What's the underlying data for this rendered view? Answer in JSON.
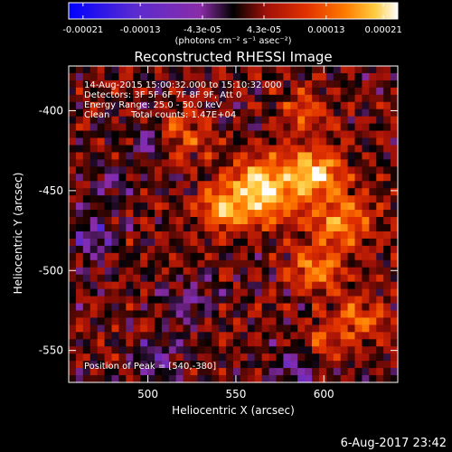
{
  "chart_data": {
    "type": "heatmap",
    "title": "Reconstructed RHESSI Image",
    "xlabel": "Heliocentric X (arcsec)",
    "ylabel": "Heliocentric Y (arcsec)",
    "xlim": [
      455,
      642
    ],
    "ylim": [
      -570,
      -372
    ],
    "x_ticks": [
      500,
      550,
      600
    ],
    "y_ticks": [
      -400,
      -450,
      -500,
      -550
    ],
    "colorbar": {
      "range": [
        -0.00023,
        0.00023
      ],
      "tick_values": [
        -0.00021,
        -0.00013,
        -4.3e-05,
        4.3e-05,
        0.00013,
        0.00021
      ],
      "tick_labels": [
        "-0.00021",
        "-0.00013",
        "-4.3e-05",
        "4.3e-05",
        "0.00013",
        "0.00021"
      ],
      "unit_label": "(photons cm⁻² s⁻¹ asec⁻²)",
      "colormap": [
        "#0000ff",
        "#5a2bd0",
        "#8a2ca8",
        "#000000",
        "#a01008",
        "#e03000",
        "#ff7a00",
        "#ffcc40",
        "#ffffff"
      ]
    },
    "annotations": [
      "14-Aug-2015 15:00:32.000 to 15:10:32.000",
      "Detectors: 3F 5F 6F 7F 8F 9F, Att 0",
      "Energy Range: 25.0 - 50.0 keV",
      "Clean",
      "Total counts: 1.47E+04"
    ],
    "peak_label": "Position of Peak = [540,-380]",
    "peak_position": [
      540,
      -380
    ],
    "sources": [
      {
        "x": 565,
        "y": -450,
        "sigma": 14,
        "amp": 1.0
      },
      {
        "x": 595,
        "y": -440,
        "sigma": 11,
        "amp": 0.85
      },
      {
        "x": 540,
        "y": -462,
        "sigma": 9,
        "amp": 0.6
      },
      {
        "x": 610,
        "y": -470,
        "sigma": 12,
        "amp": 0.65
      },
      {
        "x": 595,
        "y": -500,
        "sigma": 10,
        "amp": 0.6
      },
      {
        "x": 620,
        "y": -530,
        "sigma": 11,
        "amp": 0.5
      },
      {
        "x": 520,
        "y": -415,
        "sigma": 10,
        "amp": 0.45
      },
      {
        "x": 590,
        "y": -400,
        "sigma": 9,
        "amp": 0.4
      },
      {
        "x": 600,
        "y": -545,
        "sigma": 8,
        "amp": 0.4
      },
      {
        "x": 480,
        "y": -445,
        "sigma": 6,
        "amp": -0.45
      },
      {
        "x": 470,
        "y": -480,
        "sigma": 8,
        "amp": -0.5
      },
      {
        "x": 500,
        "y": -420,
        "sigma": 7,
        "amp": -0.35
      },
      {
        "x": 585,
        "y": -560,
        "sigma": 9,
        "amp": -0.45
      },
      {
        "x": 525,
        "y": -520,
        "sigma": 10,
        "amp": -0.3
      },
      {
        "x": 505,
        "y": -555,
        "sigma": 9,
        "amp": -0.35
      }
    ]
  },
  "timestamp": "6-Aug-2017 23:42"
}
